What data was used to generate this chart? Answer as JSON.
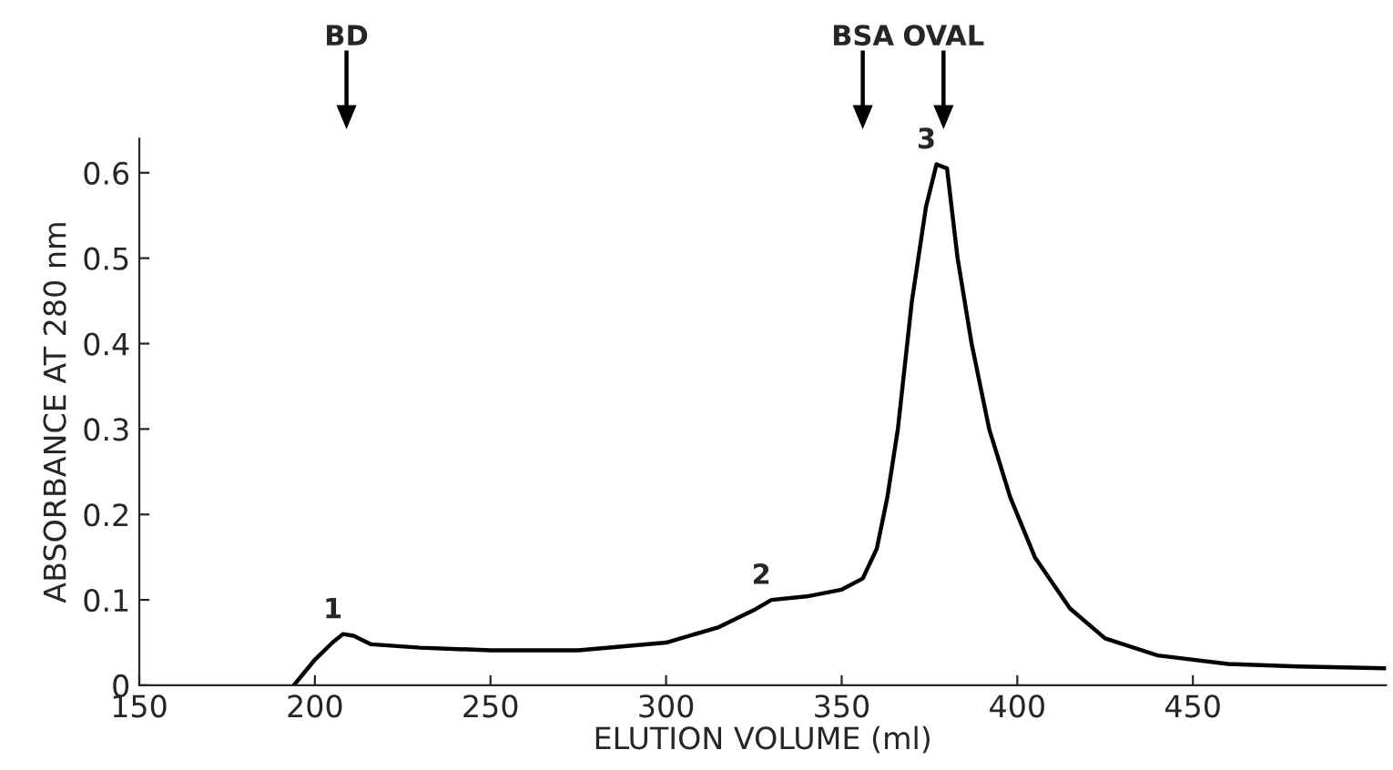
{
  "chart_data": {
    "type": "line",
    "xlabel": "ELUTION VOLUME (ml)",
    "ylabel": "ABSORBANCE AT 280 nm",
    "x": [
      194,
      200,
      205,
      208,
      211,
      216,
      230,
      250,
      275,
      300,
      315,
      325,
      330,
      340,
      350,
      356,
      360,
      363,
      366,
      370,
      374,
      377,
      380,
      383,
      387,
      392,
      398,
      405,
      415,
      425,
      440,
      460,
      480,
      505
    ],
    "series": [
      {
        "color": "#000000",
        "values": [
          0,
          0.03,
          0.05,
          0.06,
          0.058,
          0.048,
          0.044,
          0.041,
          0.041,
          0.05,
          0.068,
          0.088,
          0.1,
          0.104,
          0.112,
          0.125,
          0.16,
          0.22,
          0.3,
          0.45,
          0.56,
          0.61,
          0.605,
          0.5,
          0.4,
          0.3,
          0.22,
          0.15,
          0.09,
          0.055,
          0.035,
          0.025,
          0.022,
          0.02
        ]
      }
    ],
    "xlim": [
      150,
      505
    ],
    "ylim": [
      0,
      0.64
    ],
    "xticks": [
      150,
      200,
      250,
      300,
      350,
      400,
      450
    ],
    "yticks": [
      0,
      0.1,
      0.2,
      0.3,
      0.4,
      0.5,
      0.6
    ],
    "grid": false,
    "marker": "none",
    "line_style": "solid",
    "annotations": [
      {
        "text": "1",
        "x": 208,
        "y": 0.06
      },
      {
        "text": "2",
        "x": 330,
        "y": 0.1
      },
      {
        "text": "3",
        "x": 377,
        "y": 0.61
      }
    ],
    "ref_lines": [
      {
        "axis": "x",
        "value": 209,
        "label": "BD"
      },
      {
        "axis": "x",
        "value": 356,
        "label": "BSA"
      },
      {
        "axis": "x",
        "value": 379,
        "label": "OVAL"
      }
    ]
  }
}
